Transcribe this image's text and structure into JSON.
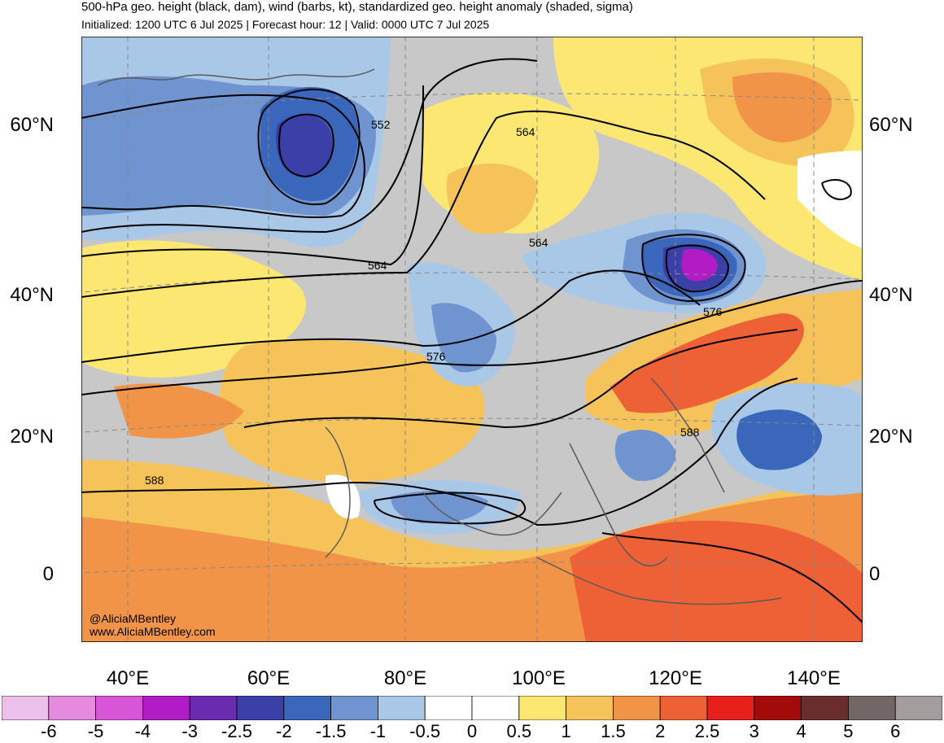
{
  "header": {
    "title": "500-hPa geo. height (black, dam), wind (barbs, kt), standardized geo. height anomaly (shaded, sigma)",
    "subtitle": "Initialized: 1200 UTC 6 Jul 2025 | Forecast hour: 12 | Valid: 0000 UTC 7 Jul 2025"
  },
  "map": {
    "lat_labels": [
      "60°N",
      "40°N",
      "20°N",
      "0"
    ],
    "lon_labels": [
      "40°E",
      "60°E",
      "80°E",
      "100°E",
      "120°E",
      "140°E"
    ],
    "contour_labels": [
      "552",
      "564",
      "564",
      "564",
      "576",
      "576",
      "588",
      "588"
    ],
    "credit_handle": "@AliciaMBentley",
    "credit_url": "www.AliciaMBentley.com"
  },
  "colorbar": {
    "labels": [
      "-6",
      "-5",
      "-4",
      "-3",
      "-2.5",
      "-2",
      "-1.5",
      "-1",
      "-0.5",
      "0",
      "0.5",
      "1",
      "1.5",
      "2",
      "2.5",
      "3",
      "4",
      "5",
      "6"
    ],
    "colors": [
      "#ecc0e8",
      "#e68ae0",
      "#d955d8",
      "#b21cc4",
      "#6a2bb0",
      "#3b3fa8",
      "#3a66bb",
      "#6f94cf",
      "#a9c7e6",
      "#ffffff",
      "#ffffff",
      "#fbe772",
      "#f6c35b",
      "#f19448",
      "#ee6035",
      "#e8201c",
      "#a30a0a",
      "#6b2c2c",
      "#736666",
      "#a39d9d"
    ]
  },
  "colors": {
    "land": "#bfbfbf",
    "contour": "#000000",
    "coast": "#555555",
    "neutral": "#c9c9c9"
  }
}
